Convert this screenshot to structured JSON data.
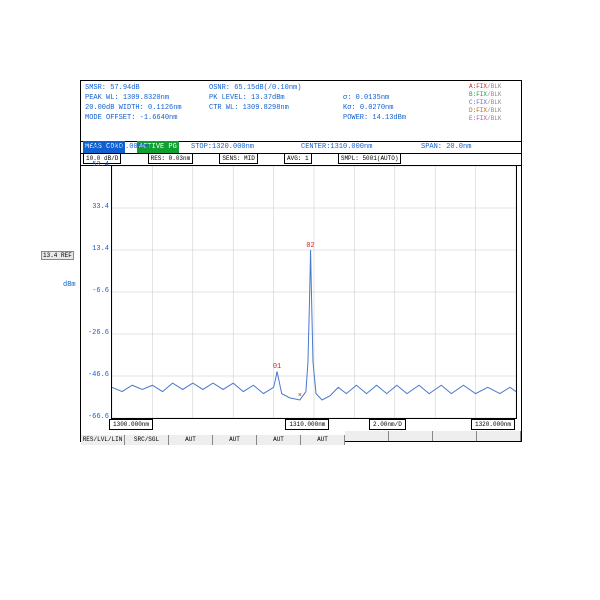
{
  "header": {
    "rows": [
      {
        "l": "SMSR:",
        "v": "57.94dB",
        "l2": "OSNR:",
        "v2": "65.15dB(/0.10nm)"
      },
      {
        "l": "PEAK WL:",
        "v": "1309.8320nm",
        "l2": "PK LEVEL:",
        "v2": "13.37dBm",
        "l3": "σ:",
        "v3": "0.0135nm"
      },
      {
        "l": "20.00dB WIDTH:",
        "v": "0.1126nm",
        "l2": "CTR WL:",
        "v2": "1309.8298nm",
        "l3": "Kσ:",
        "v3": "0.0270nm"
      },
      {
        "l": "MODE OFFSET:",
        "v": "-1.6640nm",
        "l2": "",
        "v2": "",
        "l3": "POWER:",
        "v3": "14.13dBm"
      }
    ],
    "meas_cond": "MEAS COND",
    "active": "ACTIVE PG",
    "start": "START:1300.000nm",
    "stop": "STOP:1320.000nm",
    "center": "CENTER:1310.000nm",
    "span": "SPAN:  20.0nm",
    "legend": [
      {
        "name": "A:FIX",
        "c": "#d02020",
        "blk": "/BLK"
      },
      {
        "name": "B:FIX",
        "c": "#10a030",
        "blk": "/BLK"
      },
      {
        "name": "C:FIX",
        "c": "#6060e0",
        "blk": "/BLK"
      },
      {
        "name": "D:FIX",
        "c": "#c06000",
        "blk": "/BLK"
      },
      {
        "name": "E:FIX",
        "c": "#c040c0",
        "blk": "/BLK"
      }
    ]
  },
  "settings": {
    "ref": "10.0 dB/D",
    "res": "RES: 0.03nm",
    "sens": "SENS: MID",
    "avg": "AVG: 1",
    "smpl": "SMPL: 5001(AUTO)"
  },
  "plot": {
    "ylabel": "dBm",
    "ref_label": "13.4 REF",
    "y_ticks": [
      53.4,
      33.4,
      13.4,
      -6.6,
      -26.6,
      -46.6,
      -66.6
    ],
    "ylim": [
      -66.6,
      53.4
    ],
    "xlim": [
      1300,
      1320
    ],
    "grid_color": "#c8c8c8",
    "background": "#ffffff",
    "trace_color": "#4a7acc",
    "marker_color": "#d02020",
    "series": [
      {
        "x": 1300.0,
        "y": -52
      },
      {
        "x": 1300.5,
        "y": -54
      },
      {
        "x": 1301.0,
        "y": -51
      },
      {
        "x": 1301.5,
        "y": -53
      },
      {
        "x": 1302.0,
        "y": -51
      },
      {
        "x": 1302.5,
        "y": -54
      },
      {
        "x": 1303.0,
        "y": -50
      },
      {
        "x": 1303.5,
        "y": -53
      },
      {
        "x": 1304.0,
        "y": -50
      },
      {
        "x": 1304.5,
        "y": -53
      },
      {
        "x": 1305.0,
        "y": -50
      },
      {
        "x": 1305.5,
        "y": -53
      },
      {
        "x": 1306.0,
        "y": -50
      },
      {
        "x": 1306.5,
        "y": -54
      },
      {
        "x": 1307.0,
        "y": -51
      },
      {
        "x": 1307.5,
        "y": -55
      },
      {
        "x": 1308.0,
        "y": -52
      },
      {
        "x": 1308.1,
        "y": -48
      },
      {
        "x": 1308.17,
        "y": -44.4
      },
      {
        "x": 1308.25,
        "y": -48
      },
      {
        "x": 1308.4,
        "y": -55
      },
      {
        "x": 1308.8,
        "y": -57
      },
      {
        "x": 1309.3,
        "y": -58
      },
      {
        "x": 1309.6,
        "y": -54
      },
      {
        "x": 1309.7,
        "y": -40
      },
      {
        "x": 1309.78,
        "y": -10
      },
      {
        "x": 1309.83,
        "y": 13.4
      },
      {
        "x": 1309.88,
        "y": -10
      },
      {
        "x": 1309.95,
        "y": -40
      },
      {
        "x": 1310.1,
        "y": -55
      },
      {
        "x": 1310.4,
        "y": -58
      },
      {
        "x": 1310.8,
        "y": -56
      },
      {
        "x": 1311.2,
        "y": -52
      },
      {
        "x": 1311.6,
        "y": -55
      },
      {
        "x": 1312.1,
        "y": -51
      },
      {
        "x": 1312.6,
        "y": -55
      },
      {
        "x": 1313.1,
        "y": -51
      },
      {
        "x": 1313.6,
        "y": -55
      },
      {
        "x": 1314.1,
        "y": -51
      },
      {
        "x": 1314.6,
        "y": -55
      },
      {
        "x": 1315.2,
        "y": -51
      },
      {
        "x": 1315.7,
        "y": -55
      },
      {
        "x": 1316.3,
        "y": -51
      },
      {
        "x": 1316.8,
        "y": -55
      },
      {
        "x": 1317.4,
        "y": -51
      },
      {
        "x": 1318.0,
        "y": -55
      },
      {
        "x": 1318.6,
        "y": -52
      },
      {
        "x": 1319.2,
        "y": -55
      },
      {
        "x": 1319.7,
        "y": -52
      },
      {
        "x": 1320.0,
        "y": -54
      }
    ],
    "markers": [
      {
        "x": 1308.17,
        "y": -44.4,
        "label": "01"
      },
      {
        "x": 1309.83,
        "y": 13.4,
        "label": "02"
      },
      {
        "x": 1309.3,
        "y": -58,
        "label": "×"
      }
    ]
  },
  "bottom": {
    "left": "1300.000nm",
    "center": "1310.000nm",
    "perdiv": "2.00nm/D",
    "right": "1320.000nm",
    "btns": [
      "RES/LVL/LIN",
      "SRC/SGL",
      "AUT",
      "AUT",
      "AUT",
      "AUT",
      "",
      "",
      "",
      ""
    ]
  }
}
